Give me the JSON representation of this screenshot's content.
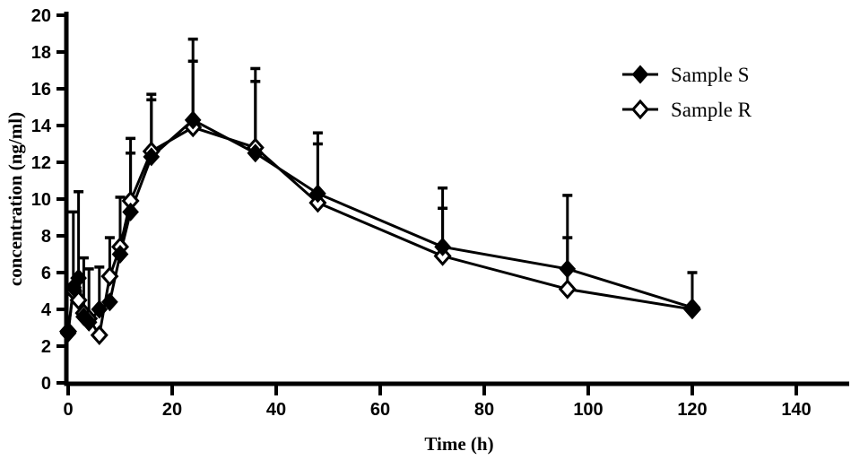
{
  "figure": {
    "background_color": "#ffffff",
    "ink_color": "#000000"
  },
  "chart_data": {
    "type": "line",
    "title": "",
    "xlabel": "Time (h)",
    "ylabel": "concentration (ng/ml)",
    "xlim": [
      0,
      150
    ],
    "ylim": [
      0,
      20
    ],
    "xticks": [
      0,
      20,
      40,
      60,
      80,
      100,
      120,
      140
    ],
    "yticks": [
      0,
      2,
      4,
      6,
      8,
      10,
      12,
      14,
      16,
      18,
      20
    ],
    "grid": false,
    "error_bars": "upper-only",
    "legend_position": "upper-right",
    "x": [
      0,
      1,
      2,
      3,
      4,
      6,
      8,
      10,
      12,
      16,
      24,
      36,
      48,
      72,
      96,
      120
    ],
    "series": [
      {
        "name": "Sample S",
        "marker": "filled-diamond",
        "line_color": "#000000",
        "values": [
          2.7,
          5.2,
          5.7,
          3.6,
          3.3,
          4.0,
          4.4,
          7.0,
          9.3,
          12.3,
          14.3,
          12.5,
          10.3,
          7.4,
          6.2,
          4.1
        ],
        "err_upper": [
          0,
          0,
          4.7,
          0,
          0,
          2.3,
          0,
          3.1,
          3.2,
          3.1,
          4.4,
          4.6,
          3.3,
          3.2,
          4.0,
          1.9
        ]
      },
      {
        "name": "Sample R",
        "marker": "open-diamond",
        "line_color": "#000000",
        "values": [
          2.8,
          5.0,
          4.5,
          3.8,
          3.5,
          2.6,
          5.8,
          7.4,
          9.9,
          12.6,
          13.9,
          12.8,
          9.8,
          6.9,
          5.1,
          4.0
        ],
        "err_upper": [
          0,
          4.3,
          0,
          3.0,
          2.7,
          0,
          2.1,
          0,
          3.4,
          3.1,
          3.6,
          3.6,
          3.2,
          2.6,
          2.8,
          0
        ]
      }
    ]
  }
}
